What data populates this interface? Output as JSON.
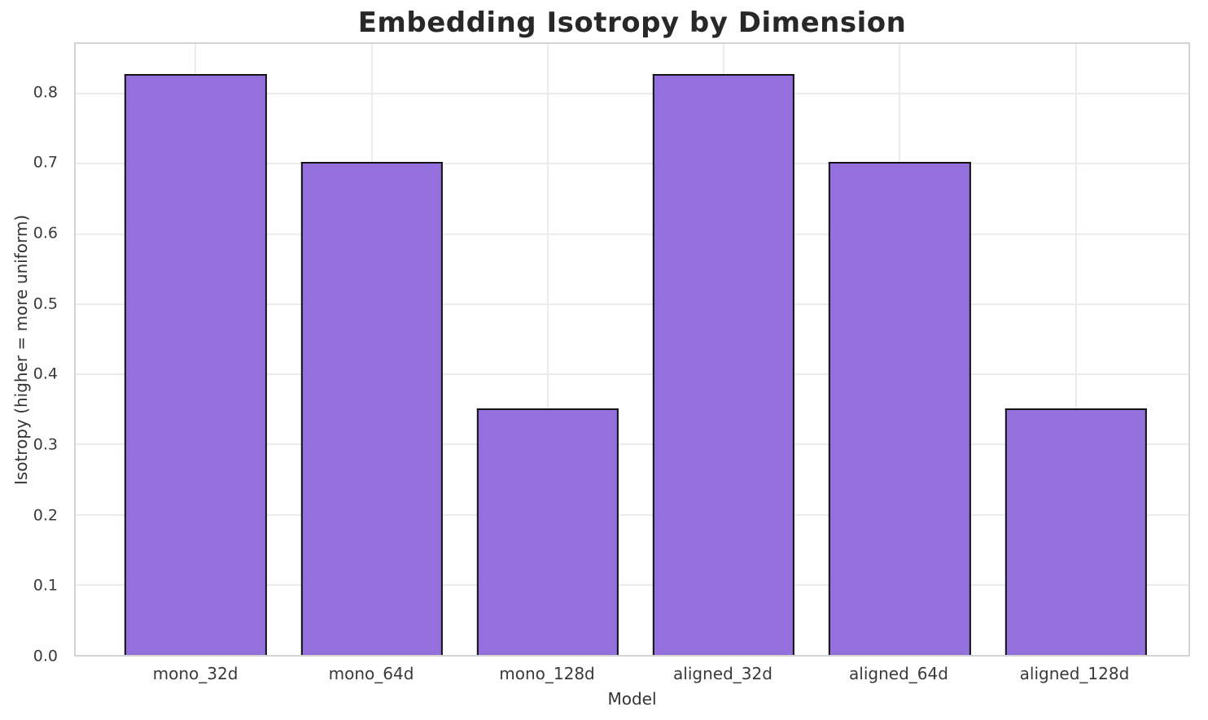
{
  "chart_data": {
    "type": "bar",
    "title": "Embedding Isotropy by Dimension",
    "xlabel": "Model",
    "ylabel": "Isotropy (higher = more uniform)",
    "categories": [
      "mono_32d",
      "mono_64d",
      "mono_128d",
      "aligned_32d",
      "aligned_64d",
      "aligned_128d"
    ],
    "values": [
      0.828,
      0.703,
      0.352,
      0.828,
      0.703,
      0.352
    ],
    "ylim": [
      0,
      0.871
    ],
    "yticks": [
      0.0,
      0.1,
      0.2,
      0.3,
      0.4,
      0.5,
      0.6,
      0.7,
      0.8
    ],
    "ytick_labels": [
      "0.0",
      "0.1",
      "0.2",
      "0.3",
      "0.4",
      "0.5",
      "0.6",
      "0.7",
      "0.8"
    ],
    "grid": true,
    "legend_position": "none",
    "style": {
      "background": "#ffffff",
      "bar_color": "#9370DB",
      "bar_edge_color": "#141414",
      "grid_color": "#ececec",
      "spine_color": "#d4d4d4",
      "tick_text_color": "#3a3a3a",
      "label_text_color": "#333333",
      "title_color": "#282828"
    }
  }
}
